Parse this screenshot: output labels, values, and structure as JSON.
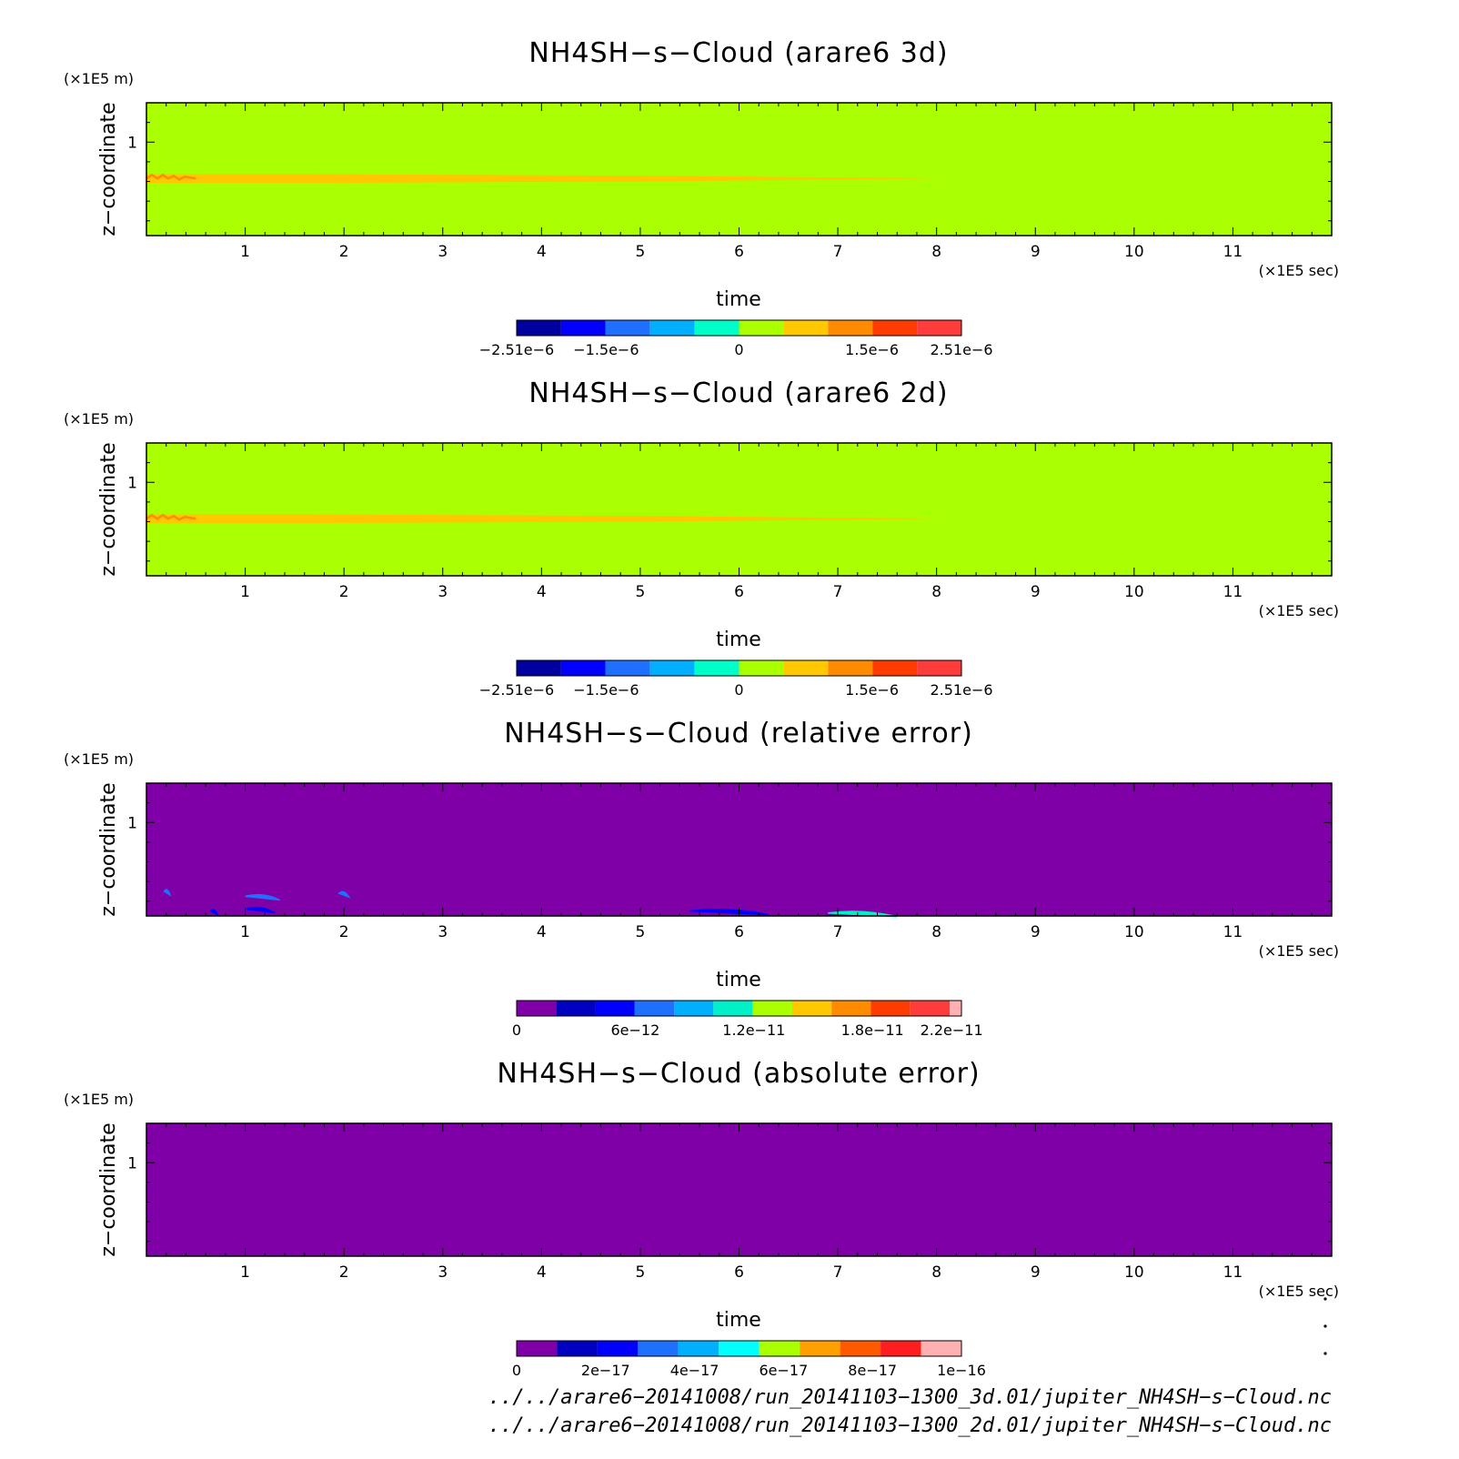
{
  "chart_data": [
    {
      "type": "heatmap",
      "title": "NH4SH−s−Cloud (arare6 3d)",
      "xlabel": "time",
      "ylabel": "z−coordinate",
      "x_unit": "(×1E5 sec)",
      "y_unit": "(×1E5 m)",
      "xlim": [
        0,
        12
      ],
      "ylim": [
        0.05,
        1.4
      ],
      "x_ticks": [
        "1",
        "2",
        "3",
        "4",
        "5",
        "6",
        "7",
        "8",
        "9",
        "10",
        "11"
      ],
      "y_ticks": [
        "1"
      ],
      "background_color": "#aaff00",
      "colorbar": {
        "colors": [
          "#0000a0",
          "#0000ff",
          "#2070ff",
          "#00b0ff",
          "#00ffc8",
          "#aaff00",
          "#ffc800",
          "#ff8c00",
          "#ff3c00",
          "#ff3c3c"
        ],
        "labels": [
          "−2.51e−6",
          "−1.5e−6",
          "0",
          "1.5e−6",
          "2.51e−6"
        ],
        "label_values": [
          -2.51e-06,
          -1.5e-06,
          0,
          1.5e-06,
          2.51e-06
        ],
        "range": [
          -2.51e-06,
          2.51e-06
        ]
      },
      "features": [
        {
          "x": [
            0,
            8.0
          ],
          "y": 0.63,
          "value": 5e-07,
          "color": "#ffc800"
        },
        {
          "x": [
            0,
            0.5
          ],
          "y": 0.63,
          "value": 1.1e-06,
          "color": "#ff8c00"
        }
      ]
    },
    {
      "type": "heatmap",
      "title": "NH4SH−s−Cloud (arare6 2d)",
      "xlabel": "time",
      "ylabel": "z−coordinate",
      "x_unit": "(×1E5 sec)",
      "y_unit": "(×1E5 m)",
      "xlim": [
        0,
        12
      ],
      "ylim": [
        0.05,
        1.4
      ],
      "x_ticks": [
        "1",
        "2",
        "3",
        "4",
        "5",
        "6",
        "7",
        "8",
        "9",
        "10",
        "11"
      ],
      "y_ticks": [
        "1"
      ],
      "background_color": "#aaff00",
      "colorbar": {
        "colors": [
          "#0000a0",
          "#0000ff",
          "#2070ff",
          "#00b0ff",
          "#00ffc8",
          "#aaff00",
          "#ffc800",
          "#ff8c00",
          "#ff3c00",
          "#ff3c3c"
        ],
        "labels": [
          "−2.51e−6",
          "−1.5e−6",
          "0",
          "1.5e−6",
          "2.51e−6"
        ],
        "label_values": [
          -2.51e-06,
          -1.5e-06,
          0,
          1.5e-06,
          2.51e-06
        ],
        "range": [
          -2.51e-06,
          2.51e-06
        ]
      },
      "features": [
        {
          "x": [
            0,
            8.0
          ],
          "y": 0.63,
          "value": 5e-07,
          "color": "#ffc800"
        },
        {
          "x": [
            0,
            0.5
          ],
          "y": 0.63,
          "value": 1.1e-06,
          "color": "#ff8c00"
        }
      ]
    },
    {
      "type": "heatmap",
      "title": "NH4SH−s−Cloud (relative error)",
      "xlabel": "time",
      "ylabel": "z−coordinate",
      "x_unit": "(×1E5 sec)",
      "y_unit": "(×1E5 m)",
      "xlim": [
        0,
        12
      ],
      "ylim": [
        0.05,
        1.4
      ],
      "x_ticks": [
        "1",
        "2",
        "3",
        "4",
        "5",
        "6",
        "7",
        "8",
        "9",
        "10",
        "11"
      ],
      "y_ticks": [
        "1"
      ],
      "background_color": "#8000a8",
      "colorbar": {
        "colors": [
          "#8000a8",
          "#0000c0",
          "#0000ff",
          "#2070ff",
          "#00b0ff",
          "#00f0c8",
          "#aaff00",
          "#ffc800",
          "#ff8c00",
          "#ff3c00",
          "#ff3c3c",
          "#ffb0b0"
        ],
        "labels": [
          "0",
          "6e−12",
          "1.2e−11",
          "1.8e−11",
          "2.2e−11"
        ],
        "label_values": [
          0,
          6e-12,
          1.2e-11,
          1.8e-11,
          2.2e-11
        ],
        "range": [
          0,
          2.25e-11
        ],
        "last_band_fraction": 0.3
      },
      "features": [
        {
          "x": [
            0.18,
            0.24
          ],
          "y": 0.3,
          "color": "#2070ff"
        },
        {
          "x": [
            1.0,
            1.35
          ],
          "y": 0.25,
          "color": "#2070ff"
        },
        {
          "x": [
            1.0,
            1.3
          ],
          "y": 0.12,
          "color": "#0000ff"
        },
        {
          "x": [
            0.65,
            0.72
          ],
          "y": 0.1,
          "color": "#0000ff"
        },
        {
          "x": [
            1.95,
            2.05
          ],
          "y": 0.28,
          "color": "#2070ff"
        },
        {
          "x": [
            5.5,
            6.3
          ],
          "y": 0.1,
          "color": "#0000ff"
        },
        {
          "x": [
            6.9,
            7.6
          ],
          "y": 0.08,
          "color": "#00f0c8"
        }
      ]
    },
    {
      "type": "heatmap",
      "title": "NH4SH−s−Cloud (absolute error)",
      "xlabel": "time",
      "ylabel": "z−coordinate",
      "x_unit": "(×1E5 sec)",
      "y_unit": "(×1E5 m)",
      "xlim": [
        0,
        12
      ],
      "ylim": [
        0.05,
        1.4
      ],
      "x_ticks": [
        "1",
        "2",
        "3",
        "4",
        "5",
        "6",
        "7",
        "8",
        "9",
        "10",
        "11"
      ],
      "y_ticks": [
        "1"
      ],
      "background_color": "#8000a8",
      "colorbar": {
        "colors": [
          "#8000a8",
          "#0000c0",
          "#0000ff",
          "#2070ff",
          "#00b0ff",
          "#00ffff",
          "#aaff00",
          "#ffa000",
          "#ff5a00",
          "#ff1e1e",
          "#ffb0b0"
        ],
        "labels": [
          "0",
          "2e−17",
          "4e−17",
          "6e−17",
          "8e−17",
          "1e−16"
        ],
        "label_values": [
          0,
          2e-17,
          4e-17,
          6e-17,
          8e-17,
          1e-16
        ],
        "range": [
          0,
          1e-16
        ]
      },
      "features": []
    }
  ],
  "footer": {
    "line1": "../../arare6−20141008/run_20141103−1300_3d.01/jupiter_NH4SH−s−Cloud.nc",
    "line2": "../../arare6−20141008/run_20141103−1300_2d.01/jupiter_NH4SH−s−Cloud.nc"
  }
}
